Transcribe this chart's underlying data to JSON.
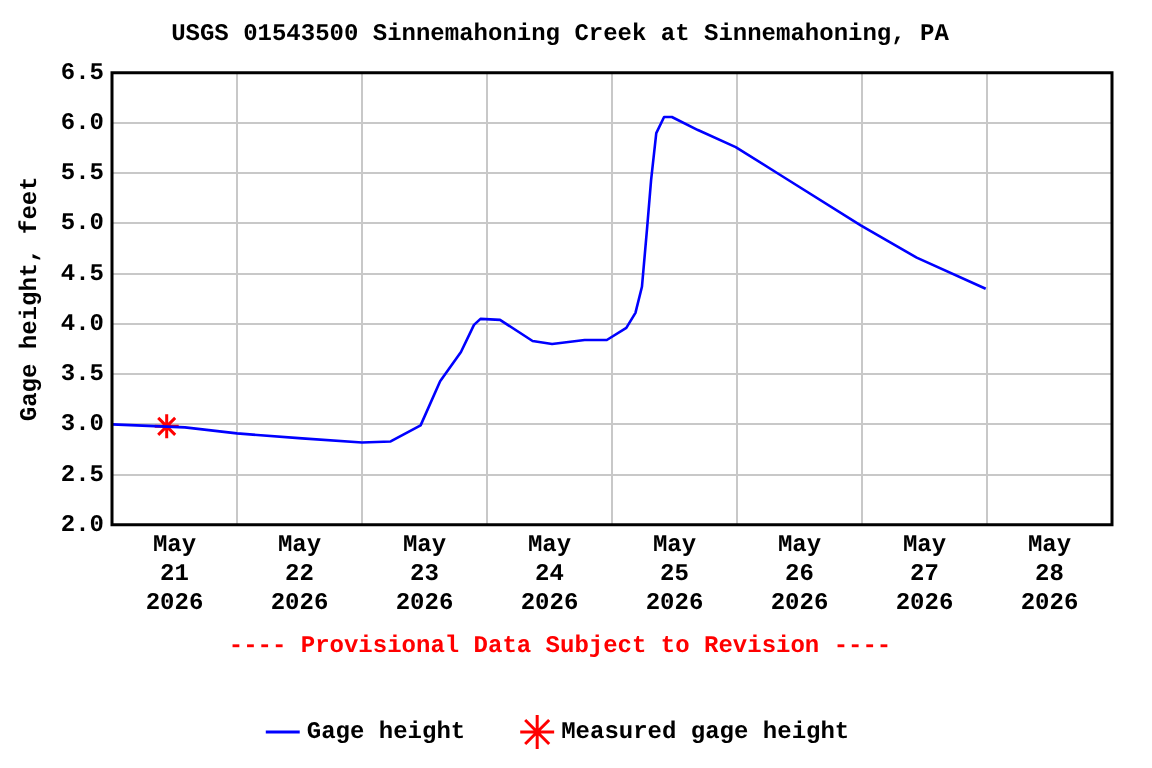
{
  "chart_data": {
    "type": "line",
    "title": "USGS 01543500 Sinnemahoning Creek at Sinnemahoning, PA",
    "ylabel": "Gage height, feet",
    "annotations": [
      "---- Provisional Data Subject to Revision ----"
    ],
    "xlim": [
      "2026-05-21T00:00",
      "2026-05-29T00:00"
    ],
    "xticks": [
      {
        "value": "2026-05-21T12:00",
        "label": "May\n21\n2026"
      },
      {
        "value": "2026-05-22T00:00",
        "label": null
      },
      {
        "value": "2026-05-22T12:00",
        "label": "May\n22\n2026"
      },
      {
        "value": "2026-05-23T00:00",
        "label": null
      },
      {
        "value": "2026-05-23T12:00",
        "label": "May\n23\n2026"
      },
      {
        "value": "2026-05-24T00:00",
        "label": null
      },
      {
        "value": "2026-05-24T12:00",
        "label": "May\n24\n2026"
      },
      {
        "value": "2026-05-25T00:00",
        "label": null
      },
      {
        "value": "2026-05-25T12:00",
        "label": "May\n25\n2026"
      },
      {
        "value": "2026-05-26T00:00",
        "label": null
      },
      {
        "value": "2026-05-26T12:00",
        "label": "May\n26\n2026"
      },
      {
        "value": "2026-05-27T00:00",
        "label": null
      },
      {
        "value": "2026-05-27T12:00",
        "label": "May\n27\n2026"
      },
      {
        "value": "2026-05-28T00:00",
        "label": null
      },
      {
        "value": "2026-05-28T12:00",
        "label": "May\n28\n2026"
      }
    ],
    "ylim": [
      2,
      6.5
    ],
    "yticks": [
      {
        "value": 2,
        "label": "2.0"
      },
      2.5,
      {
        "value": 3,
        "label": "3.0"
      },
      3.5,
      {
        "value": 4,
        "label": "4.0"
      },
      4.5,
      {
        "value": 5,
        "label": "5.0"
      },
      5.5,
      {
        "value": 6,
        "label": "6.0"
      },
      6.5
    ],
    "grid": true,
    "legend": "bottom",
    "series": [
      {
        "name": "Gage height",
        "color": "#0000ff",
        "marker": "none",
        "x": [
          "2026-05-21T00:00",
          "2026-05-21T14:00",
          "2026-05-22T00:00",
          "2026-05-22T12:30",
          "2026-05-23T00:00",
          "2026-05-23T05:30",
          "2026-05-23T11:15",
          "2026-05-23T15:00",
          "2026-05-23T19:00",
          "2026-05-23T21:30",
          "2026-05-23T22:45",
          "2026-05-24T02:30",
          "2026-05-24T08:45",
          "2026-05-24T12:30",
          "2026-05-24T18:45",
          "2026-05-24T23:00",
          "2026-05-25T02:45",
          "2026-05-25T04:30",
          "2026-05-25T05:45",
          "2026-05-25T06:45",
          "2026-05-25T07:30",
          "2026-05-25T08:30",
          "2026-05-25T10:00",
          "2026-05-25T11:30",
          "2026-05-25T16:30",
          "2026-05-25T23:45",
          "2026-05-26T09:00",
          "2026-05-26T23:45",
          "2026-05-27T10:30",
          "2026-05-27T23:45"
        ],
        "values": [
          3.0,
          2.97,
          2.91,
          2.86,
          2.82,
          2.83,
          2.99,
          3.43,
          3.72,
          3.99,
          4.05,
          4.04,
          3.83,
          3.8,
          3.84,
          3.84,
          3.96,
          4.11,
          4.37,
          4.96,
          5.43,
          5.9,
          6.06,
          6.06,
          5.93,
          5.76,
          5.46,
          4.98,
          4.66,
          4.35
        ]
      },
      {
        "name": "Measured gage height",
        "color": "#ff0000",
        "type": "scatter",
        "marker": "cross",
        "x": [
          "2026-05-21T10:30"
        ],
        "values": [
          2.98
        ]
      }
    ]
  }
}
